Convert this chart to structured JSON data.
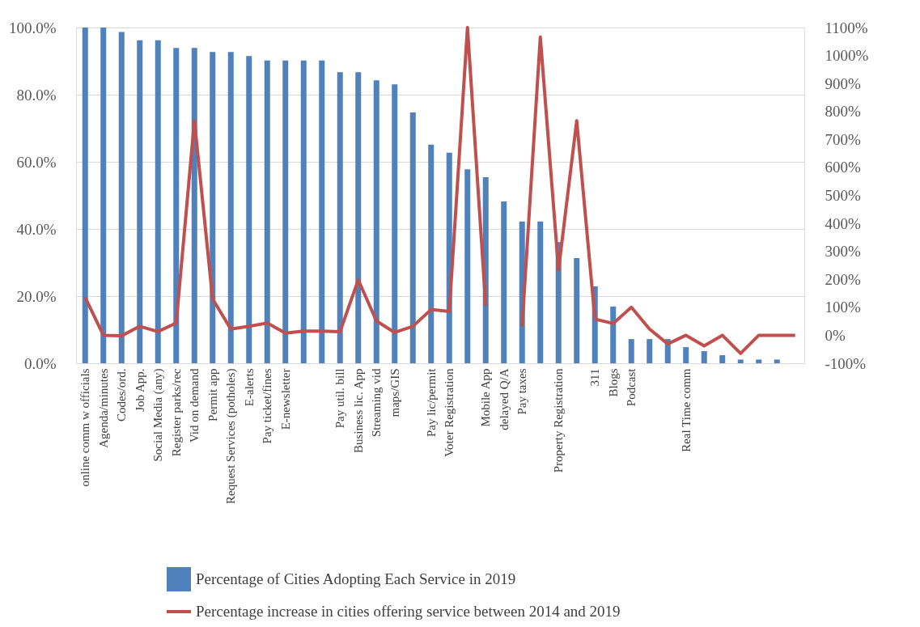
{
  "chart_data": {
    "type": "bar",
    "categories": [
      "online comm w officials",
      "Agenda/minutes",
      "Codes/ord.",
      "Job App.",
      "Social Media (any)",
      "Register parks/rec",
      "Vid on demand",
      "Permit app",
      "Request Services (potholes)",
      "E-alerts",
      "Pay ticket/fines",
      "E-newsletter",
      null,
      null,
      "Pay util. bill",
      "Business lic. App",
      "Streaming vid",
      "maps/GIS",
      null,
      "Pay lic/permit",
      "Voter Registration",
      null,
      "Mobile App",
      "delayed Q/A",
      "Pay taxes",
      null,
      "Property Registration",
      null,
      "311",
      "Blogs",
      "Podcast",
      null,
      null,
      "Real Time comm",
      null,
      null,
      null,
      null,
      null,
      null
    ],
    "series": [
      {
        "name": "Percentage of Cities Adopting Each Service in 2019",
        "color": "#4f81bd",
        "values": [
          100,
          100,
          98.7,
          96.2,
          96.2,
          93.9,
          93.9,
          92.7,
          92.7,
          91.5,
          90.2,
          90.2,
          90.2,
          90.2,
          86.7,
          86.7,
          84.3,
          83.1,
          74.7,
          65.1,
          62.7,
          57.8,
          55.4,
          48.2,
          42.2,
          42.2,
          36.1,
          31.3,
          22.9,
          16.9,
          7.2,
          7.2,
          7.2,
          4.8,
          3.6,
          2.4,
          1.1,
          1.1,
          1.1,
          0
        ]
      },
      {
        "name": "Percentage increase in cities offering service between 2014 and 2019",
        "type": "line",
        "axis": "y2",
        "color": "#c0504d",
        "values": [
          135,
          0,
          -2,
          32,
          13,
          44,
          767,
          130,
          22,
          32,
          44,
          8,
          15,
          15,
          13,
          198,
          51,
          10,
          32,
          92,
          85,
          1100,
          106,
          null,
          32,
          1066,
          234,
          767,
          58,
          42,
          100,
          22,
          -31,
          0,
          -38,
          0,
          -65,
          0,
          0,
          0
        ]
      }
    ],
    "ylim": [
      0,
      100
    ],
    "yticks": [
      {
        "value": 0,
        "label": "0.0%"
      },
      {
        "value": 20,
        "label": "20.0%"
      },
      {
        "value": 40,
        "label": "40.0%"
      },
      {
        "value": 60,
        "label": "60.0%"
      },
      {
        "value": 80,
        "label": "80.0%"
      },
      {
        "value": 100,
        "label": "100.0%"
      }
    ],
    "y2lim": [
      -100,
      1100
    ],
    "y2ticks": [
      {
        "value": -100,
        "label": "-100%"
      },
      {
        "value": 0,
        "label": "0%"
      },
      {
        "value": 100,
        "label": "100%"
      },
      {
        "value": 200,
        "label": "200%"
      },
      {
        "value": 300,
        "label": "300%"
      },
      {
        "value": 400,
        "label": "400%"
      },
      {
        "value": 500,
        "label": "500%"
      },
      {
        "value": 600,
        "label": "600%"
      },
      {
        "value": 700,
        "label": "700%"
      },
      {
        "value": 800,
        "label": "800%"
      },
      {
        "value": 900,
        "label": "900%"
      },
      {
        "value": 1000,
        "label": "1000%"
      },
      {
        "value": 1100,
        "label": "1100%"
      }
    ],
    "grid": "y",
    "legend": "bottom"
  }
}
